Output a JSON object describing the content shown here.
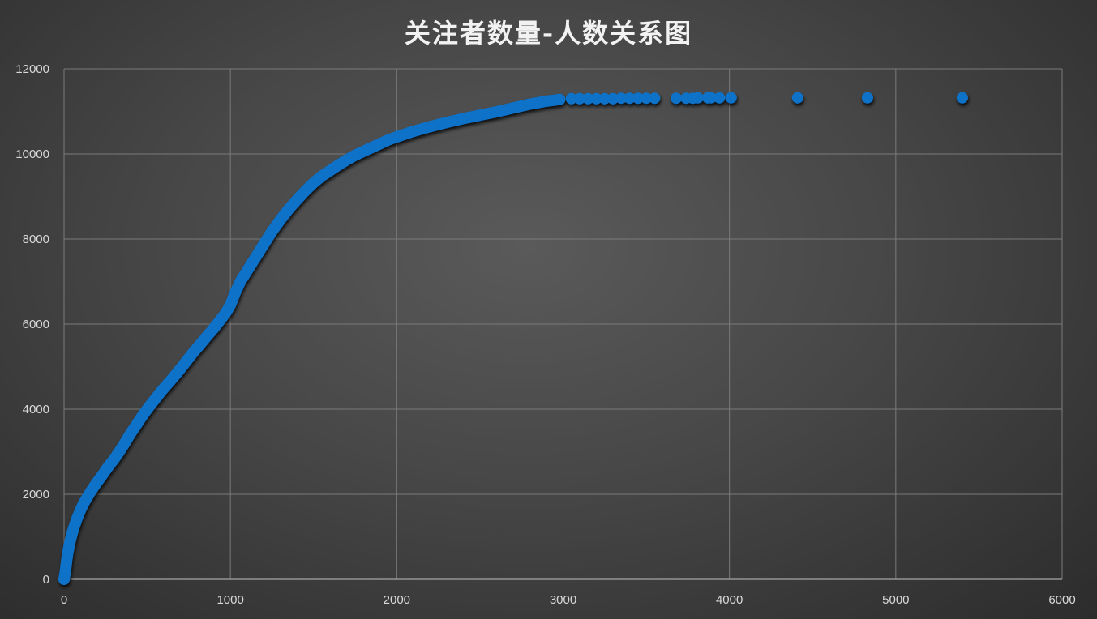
{
  "chart_data": {
    "type": "scatter",
    "title": "关注者数量-人数关系图",
    "xlabel": "",
    "ylabel": "",
    "xlim": [
      0,
      6000
    ],
    "ylim": [
      0,
      12000
    ],
    "x_ticks": [
      "0",
      "1000",
      "2000",
      "3000",
      "4000",
      "5000",
      "6000"
    ],
    "y_ticks": [
      "0",
      "2000",
      "4000",
      "6000",
      "8000",
      "10000",
      "12000"
    ],
    "grid": true,
    "legend": "none",
    "marker_color": "#1072c8",
    "series": [
      {
        "points": [
          [
            0,
            0
          ],
          [
            5,
            120
          ],
          [
            10,
            250
          ],
          [
            15,
            420
          ],
          [
            20,
            560
          ],
          [
            30,
            780
          ],
          [
            40,
            950
          ],
          [
            50,
            1100
          ],
          [
            60,
            1230
          ],
          [
            80,
            1450
          ],
          [
            100,
            1640
          ],
          [
            120,
            1800
          ],
          [
            150,
            2000
          ],
          [
            180,
            2180
          ],
          [
            200,
            2290
          ],
          [
            230,
            2450
          ],
          [
            260,
            2620
          ],
          [
            300,
            2820
          ],
          [
            330,
            2990
          ],
          [
            360,
            3170
          ],
          [
            400,
            3430
          ],
          [
            430,
            3600
          ],
          [
            460,
            3780
          ],
          [
            500,
            4000
          ],
          [
            540,
            4200
          ],
          [
            580,
            4400
          ],
          [
            620,
            4580
          ],
          [
            660,
            4760
          ],
          [
            700,
            4950
          ],
          [
            740,
            5150
          ],
          [
            780,
            5350
          ],
          [
            820,
            5530
          ],
          [
            860,
            5720
          ],
          [
            900,
            5900
          ],
          [
            940,
            6100
          ],
          [
            970,
            6250
          ],
          [
            1000,
            6450
          ],
          [
            1030,
            6750
          ],
          [
            1060,
            7000
          ],
          [
            1100,
            7250
          ],
          [
            1150,
            7560
          ],
          [
            1200,
            7870
          ],
          [
            1250,
            8180
          ],
          [
            1300,
            8450
          ],
          [
            1350,
            8700
          ],
          [
            1400,
            8920
          ],
          [
            1450,
            9130
          ],
          [
            1500,
            9320
          ],
          [
            1550,
            9480
          ],
          [
            1600,
            9610
          ],
          [
            1650,
            9740
          ],
          [
            1700,
            9860
          ],
          [
            1750,
            9970
          ],
          [
            1800,
            10060
          ],
          [
            1850,
            10150
          ],
          [
            1900,
            10240
          ],
          [
            1950,
            10330
          ],
          [
            2000,
            10400
          ],
          [
            2100,
            10530
          ],
          [
            2200,
            10640
          ],
          [
            2300,
            10740
          ],
          [
            2400,
            10830
          ],
          [
            2500,
            10910
          ],
          [
            2600,
            10990
          ],
          [
            2700,
            11080
          ],
          [
            2800,
            11170
          ],
          [
            2900,
            11240
          ],
          [
            2980,
            11280
          ],
          [
            3050,
            11300
          ],
          [
            3100,
            11300
          ],
          [
            3150,
            11300
          ],
          [
            3200,
            11300
          ],
          [
            3250,
            11300
          ],
          [
            3300,
            11300
          ],
          [
            3350,
            11310
          ],
          [
            3400,
            11310
          ],
          [
            3450,
            11310
          ],
          [
            3500,
            11310
          ],
          [
            3550,
            11310
          ],
          [
            3680,
            11310
          ],
          [
            3740,
            11310
          ],
          [
            3780,
            11310
          ],
          [
            3810,
            11320
          ],
          [
            3870,
            11320
          ],
          [
            3890,
            11320
          ],
          [
            3940,
            11320
          ],
          [
            4010,
            11320
          ],
          [
            4410,
            11320
          ],
          [
            4830,
            11320
          ],
          [
            5400,
            11320
          ]
        ]
      }
    ]
  }
}
